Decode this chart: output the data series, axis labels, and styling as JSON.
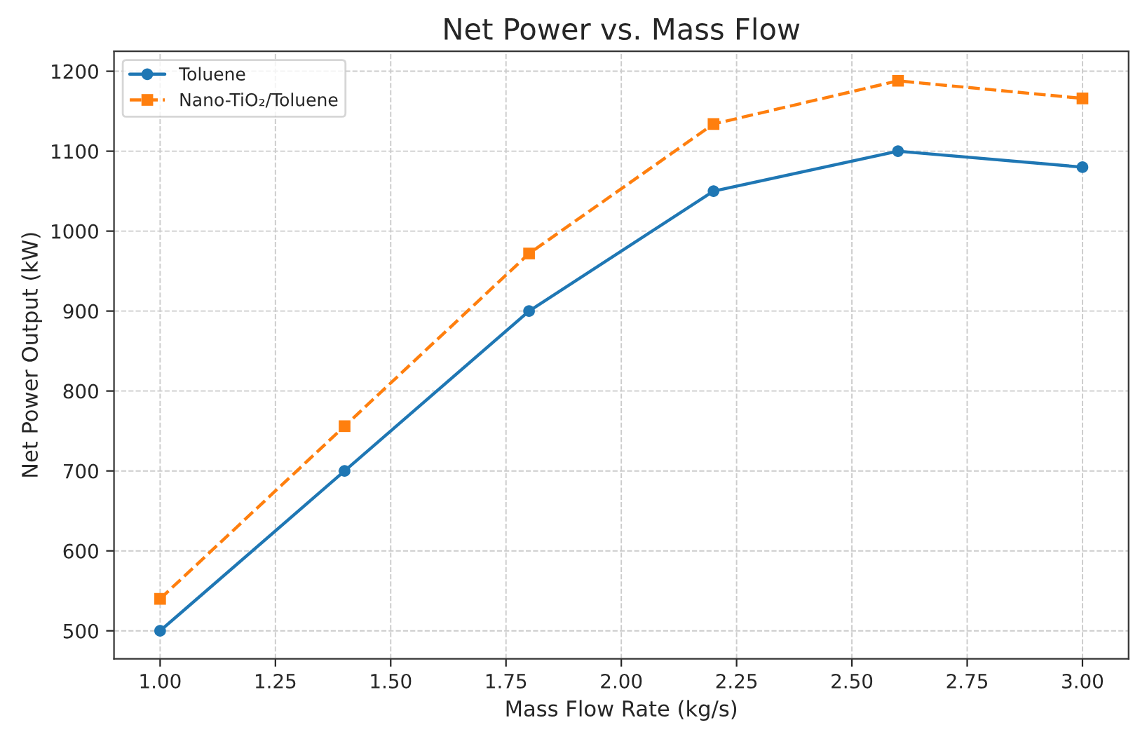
{
  "chart_data": {
    "type": "line",
    "title": "Net Power vs. Mass Flow",
    "xlabel": "Mass Flow Rate (kg/s)",
    "ylabel": "Net Power Output (kW)",
    "x": [
      1.0,
      1.4,
      1.8,
      2.2,
      2.6,
      3.0
    ],
    "series": [
      {
        "name": "Toluene",
        "color": "#1f77b4",
        "values": [
          500,
          700,
          900,
          1050,
          1100,
          1080
        ],
        "marker": "circle",
        "line_style": "solid"
      },
      {
        "name": "Nano-TiO₂/Toluene",
        "color": "#ff7f0e",
        "values": [
          540,
          756,
          972,
          1134,
          1188,
          1166
        ],
        "marker": "square",
        "line_style": "dashed"
      }
    ],
    "xlim": [
      0.9,
      3.1
    ],
    "xticks": [
      {
        "value": 1.0,
        "label": "1.00"
      },
      {
        "value": 1.25,
        "label": "1.25"
      },
      {
        "value": 1.5,
        "label": "1.50"
      },
      {
        "value": 1.75,
        "label": "1.75"
      },
      {
        "value": 2.0,
        "label": "2.00"
      },
      {
        "value": 2.25,
        "label": "2.25"
      },
      {
        "value": 2.5,
        "label": "2.50"
      },
      {
        "value": 2.75,
        "label": "2.75"
      },
      {
        "value": 3.0,
        "label": "3.00"
      }
    ],
    "ylim": [
      465,
      1225
    ],
    "yticks": [
      500,
      600,
      700,
      800,
      900,
      1000,
      1100,
      1200
    ],
    "grid": true,
    "legend": "top left"
  }
}
